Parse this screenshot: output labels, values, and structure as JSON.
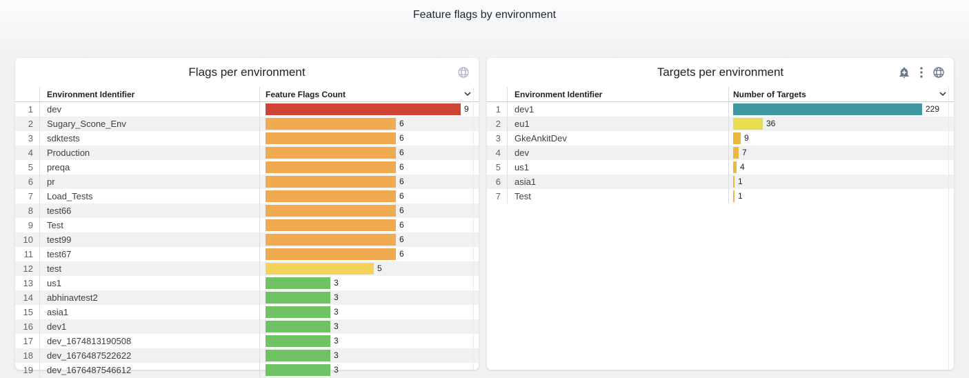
{
  "page": {
    "title": "Feature flags by environment"
  },
  "cards": [
    {
      "title": "Flags per environment",
      "header_icons": [
        "globe-icon"
      ],
      "columns": {
        "env": "Environment Identifier",
        "metric": "Feature Flags Count"
      },
      "sort_icon": "chevron-down-icon",
      "max_value": 9,
      "rows": [
        {
          "index": 1,
          "env": "dev",
          "value": 9,
          "color": "#cf4436"
        },
        {
          "index": 2,
          "env": "Sugary_Scone_Env",
          "value": 6,
          "color": "#f0ab51"
        },
        {
          "index": 3,
          "env": "sdktests",
          "value": 6,
          "color": "#f0ab51"
        },
        {
          "index": 4,
          "env": "Production",
          "value": 6,
          "color": "#f0ab51"
        },
        {
          "index": 5,
          "env": "preqa",
          "value": 6,
          "color": "#f0ab51"
        },
        {
          "index": 6,
          "env": "pr",
          "value": 6,
          "color": "#f0ab51"
        },
        {
          "index": 7,
          "env": "Load_Tests",
          "value": 6,
          "color": "#f0ab51"
        },
        {
          "index": 8,
          "env": "test66",
          "value": 6,
          "color": "#f0ab51"
        },
        {
          "index": 9,
          "env": "Test",
          "value": 6,
          "color": "#f0ab51"
        },
        {
          "index": 10,
          "env": "test99",
          "value": 6,
          "color": "#f0ab51"
        },
        {
          "index": 11,
          "env": "test67",
          "value": 6,
          "color": "#f0ab51"
        },
        {
          "index": 12,
          "env": "test",
          "value": 5,
          "color": "#f4d25c"
        },
        {
          "index": 13,
          "env": "us1",
          "value": 3,
          "color": "#70c364"
        },
        {
          "index": 14,
          "env": "abhinavtest2",
          "value": 3,
          "color": "#70c364"
        },
        {
          "index": 15,
          "env": "asia1",
          "value": 3,
          "color": "#70c364"
        },
        {
          "index": 16,
          "env": "dev1",
          "value": 3,
          "color": "#70c364"
        },
        {
          "index": 17,
          "env": "dev_1674813190508",
          "value": 3,
          "color": "#70c364"
        },
        {
          "index": 18,
          "env": "dev_1676487522622",
          "value": 3,
          "color": "#70c364"
        },
        {
          "index": 19,
          "env": "dev_1676487546612",
          "value": 3,
          "color": "#70c364"
        }
      ]
    },
    {
      "title": "Targets per environment",
      "header_icons": [
        "add-alert-icon",
        "more-vert-icon",
        "globe-icon"
      ],
      "columns": {
        "env": "Environment Identifier",
        "metric": "Number of Targets"
      },
      "sort_icon": "chevron-down-icon",
      "max_value": 229,
      "rows": [
        {
          "index": 1,
          "env": "dev1",
          "value": 229,
          "color": "#3f98a1"
        },
        {
          "index": 2,
          "env": "eu1",
          "value": 36,
          "color": "#eadd50"
        },
        {
          "index": 3,
          "env": "GkeAnkitDev",
          "value": 9,
          "color": "#e9b942"
        },
        {
          "index": 4,
          "env": "dev",
          "value": 7,
          "color": "#e9b942"
        },
        {
          "index": 5,
          "env": "us1",
          "value": 4,
          "color": "#e9b942"
        },
        {
          "index": 6,
          "env": "asia1",
          "value": 1,
          "color": "#e9b942"
        },
        {
          "index": 7,
          "env": "Test",
          "value": 1,
          "color": "#e9b942"
        }
      ]
    }
  ],
  "colors": {
    "bar_red": "#cf4436",
    "bar_orange": "#f0ab51",
    "bar_yellow": "#f4d25c",
    "bar_green": "#70c364",
    "bar_teal": "#3f98a1",
    "bar_light_yellow": "#eadd50",
    "bar_amber": "#e9b942",
    "row_alt_bg": "#f0f1f1"
  },
  "chart_data": [
    {
      "type": "bar",
      "orientation": "horizontal",
      "title": "Flags per environment",
      "xlabel": "Feature Flags Count",
      "ylabel": "Environment Identifier",
      "categories": [
        "dev",
        "Sugary_Scone_Env",
        "sdktests",
        "Production",
        "preqa",
        "pr",
        "Load_Tests",
        "test66",
        "Test",
        "test99",
        "test67",
        "test",
        "us1",
        "abhinavtest2",
        "asia1",
        "dev1",
        "dev_1674813190508",
        "dev_1676487522622",
        "dev_1676487546612"
      ],
      "values": [
        9,
        6,
        6,
        6,
        6,
        6,
        6,
        6,
        6,
        6,
        6,
        5,
        3,
        3,
        3,
        3,
        3,
        3,
        3
      ],
      "xlim": [
        0,
        9
      ],
      "legend": false
    },
    {
      "type": "bar",
      "orientation": "horizontal",
      "title": "Targets per environment",
      "xlabel": "Number of Targets",
      "ylabel": "Environment Identifier",
      "categories": [
        "dev1",
        "eu1",
        "GkeAnkitDev",
        "dev",
        "us1",
        "asia1",
        "Test"
      ],
      "values": [
        229,
        36,
        9,
        7,
        4,
        1,
        1
      ],
      "xlim": [
        0,
        229
      ],
      "legend": false
    }
  ]
}
